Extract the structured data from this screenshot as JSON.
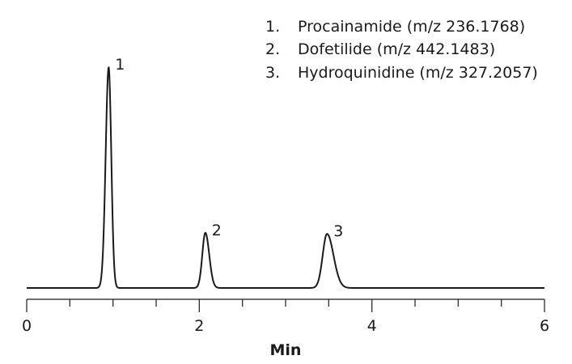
{
  "chart_data": {
    "type": "line",
    "xlabel": "Min",
    "ylabel": "",
    "xlim": [
      0,
      6
    ],
    "x_ticks": [
      "0",
      "2",
      "4",
      "6"
    ],
    "x_minor_step": 0.5,
    "grid": false,
    "legend_position": "top-right",
    "legend": [
      {
        "number": "1.",
        "text": "Procainamide (m/z 236.1768)"
      },
      {
        "number": "2.",
        "text": "Dofetilide (m/z 442.1483)"
      },
      {
        "number": "3.",
        "text": "Hydroquinidine (m/z 327.2057)"
      }
    ],
    "peaks": [
      {
        "label": "1",
        "rt": 0.95,
        "height": 100,
        "width_left": 0.035,
        "width_right": 0.03
      },
      {
        "label": "2",
        "rt": 2.07,
        "height": 25,
        "width_left": 0.035,
        "width_right": 0.045
      },
      {
        "label": "3",
        "rt": 3.48,
        "height": 24.5,
        "width_left": 0.05,
        "width_right": 0.075
      }
    ],
    "baseline": 0
  }
}
